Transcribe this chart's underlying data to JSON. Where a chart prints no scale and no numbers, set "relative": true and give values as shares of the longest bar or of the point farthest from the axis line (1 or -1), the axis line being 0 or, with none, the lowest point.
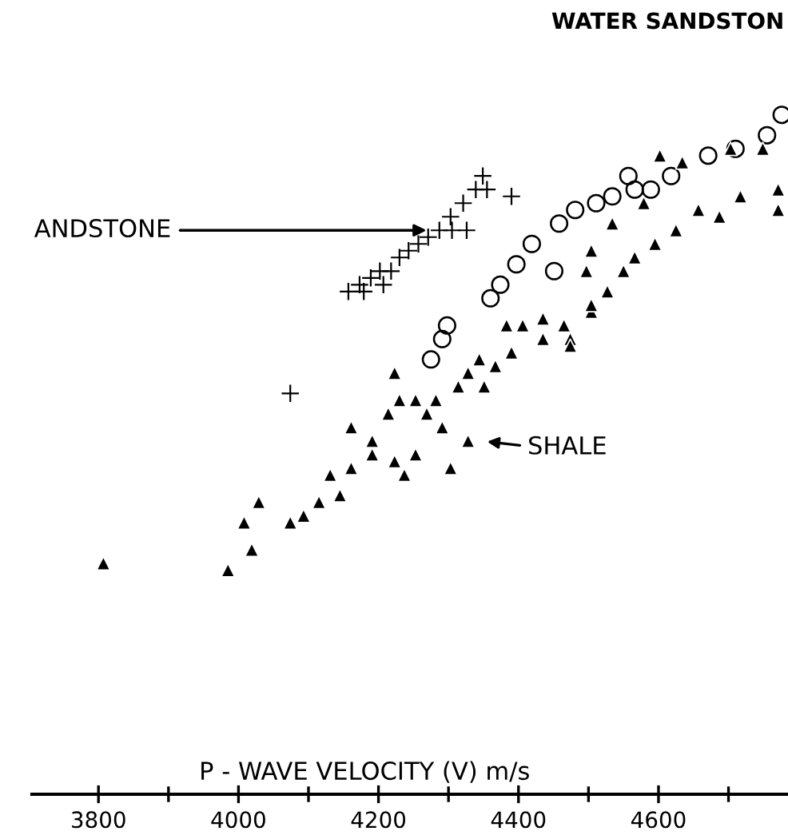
{
  "chart_data": {
    "type": "scatter",
    "relative": true,
    "xlabel": "P - WAVE VELOCITY (V) m/s",
    "xlim": [
      3705,
      4785
    ],
    "xticks": [
      3800,
      {
        "value": 3900,
        "label": null
      },
      4000,
      {
        "value": 4100,
        "label": null
      },
      4200,
      {
        "value": 4300,
        "label": null
      },
      4400,
      {
        "value": 4500,
        "label": null
      },
      4600,
      {
        "value": 4700,
        "label": null
      }
    ],
    "grid": false,
    "legend": false,
    "annotations": [
      "WATER SANDSTON",
      {
        "text": "ANDSTONE",
        "x": 4275,
        "y": 0.83
      },
      "SHALE"
    ],
    "series": [
      {
        "marker": "cross",
        "color": "#000000",
        "x": [
          4157,
          4173,
          4189,
          4202,
          4218,
          4230,
          4243,
          4257,
          4271,
          4287,
          4303,
          4321,
          4339,
          4355,
          4390,
          4349,
          4305,
          4326,
          4207,
          4179,
          4074
        ],
        "values": [
          0.74,
          0.75,
          0.76,
          0.77,
          0.77,
          0.79,
          0.8,
          0.81,
          0.82,
          0.83,
          0.85,
          0.87,
          0.89,
          0.89,
          0.88,
          0.91,
          0.83,
          0.83,
          0.75,
          0.74,
          0.59
        ]
      },
      {
        "marker": "circle",
        "color": "#000000",
        "x": [
          4275,
          4291,
          4298,
          4360,
          4374,
          4397,
          4419,
          4451,
          4458,
          4481,
          4511,
          4534,
          4557,
          4566,
          4589,
          4618,
          4671,
          4710,
          4755,
          4776
        ],
        "values": [
          0.64,
          0.67,
          0.69,
          0.73,
          0.75,
          0.78,
          0.81,
          0.77,
          0.84,
          0.86,
          0.87,
          0.88,
          0.91,
          0.89,
          0.89,
          0.91,
          0.94,
          0.95,
          0.97,
          1.0
        ]
      },
      {
        "marker": "triangle",
        "color": "#000000",
        "x": [
          3807,
          3985,
          4019,
          4008,
          4029,
          4074,
          4093,
          4115,
          4145,
          4131,
          4161,
          4191,
          4161,
          4191,
          4223,
          4237,
          4253,
          4303,
          4328,
          4291,
          4223,
          4230,
          4214,
          4253,
          4269,
          4282,
          4314,
          4328,
          4344,
          4351,
          4367,
          4390,
          4383,
          4406,
          4435,
          4465,
          4474,
          4504,
          4527,
          4435,
          4474,
          4504,
          4566,
          4595,
          4625,
          4657,
          4687,
          4717,
          4771,
          4771,
          4634,
          4602,
          4703,
          4749,
          4579,
          4504,
          4534,
          4497,
          4550
        ],
        "values": [
          0.34,
          0.33,
          0.36,
          0.4,
          0.43,
          0.4,
          0.41,
          0.43,
          0.44,
          0.47,
          0.48,
          0.5,
          0.54,
          0.52,
          0.49,
          0.47,
          0.5,
          0.48,
          0.52,
          0.54,
          0.62,
          0.58,
          0.56,
          0.58,
          0.56,
          0.58,
          0.6,
          0.62,
          0.64,
          0.6,
          0.63,
          0.65,
          0.69,
          0.69,
          0.7,
          0.69,
          0.67,
          0.71,
          0.74,
          0.67,
          0.66,
          0.72,
          0.79,
          0.81,
          0.83,
          0.86,
          0.85,
          0.88,
          0.86,
          0.89,
          0.93,
          0.94,
          0.95,
          0.95,
          0.87,
          0.8,
          0.84,
          0.77,
          0.77
        ]
      }
    ]
  }
}
